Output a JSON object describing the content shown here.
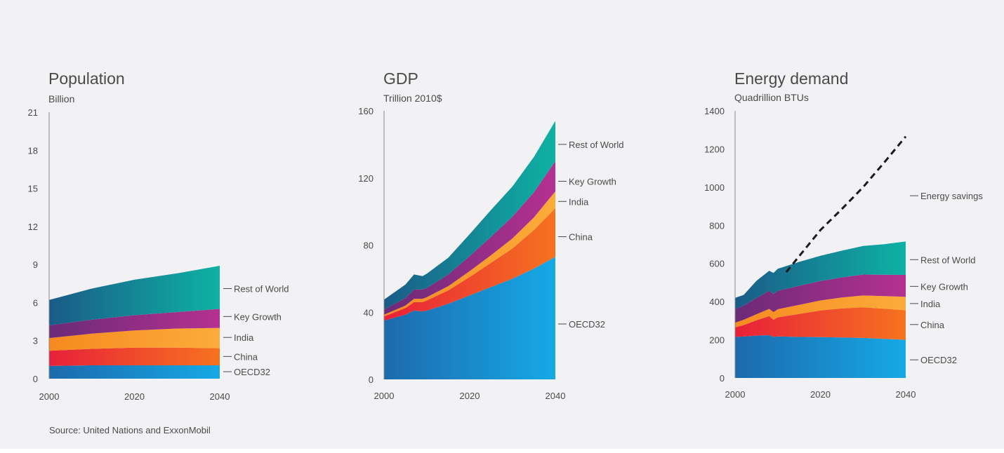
{
  "colors": {
    "background": "#f2f2f4",
    "OECD32": [
      "#1c6aac",
      "#16a9e6"
    ],
    "China": [
      "#e8203a",
      "#f6731e"
    ],
    "India": [
      "#f68a1f",
      "#fbac3a"
    ],
    "Key Growth": [
      "#6b2a77",
      "#b53191"
    ],
    "Rest of World": [
      "#1a5b88",
      "#0eb2a3"
    ]
  },
  "chart_data": [
    {
      "type": "area",
      "stacked": true,
      "title": "Population",
      "unit": "Billion",
      "x": [
        2000,
        2010,
        2020,
        2030,
        2040
      ],
      "xticks": [
        2000,
        2020,
        2040
      ],
      "ylim": [
        0,
        21
      ],
      "yticks": [
        0,
        3,
        6,
        9,
        12,
        15,
        18,
        21
      ],
      "series": [
        {
          "name": "OECD32",
          "values": [
            1.0,
            1.05,
            1.05,
            1.05,
            1.05
          ]
        },
        {
          "name": "China",
          "values": [
            1.2,
            1.3,
            1.4,
            1.4,
            1.35
          ]
        },
        {
          "name": "India",
          "values": [
            1.0,
            1.2,
            1.35,
            1.5,
            1.6
          ]
        },
        {
          "name": "Key Growth",
          "values": [
            1.0,
            1.1,
            1.2,
            1.3,
            1.5
          ]
        },
        {
          "name": "Rest of World",
          "values": [
            2.0,
            2.45,
            2.8,
            3.05,
            3.4
          ]
        }
      ],
      "labels": [
        "Rest of World",
        "Key Growth",
        "India",
        "China",
        "OECD32"
      ],
      "label_values": [
        7.1,
        4.9,
        3.25,
        1.75,
        0.55
      ],
      "grid": false,
      "legend": "right-inline"
    },
    {
      "type": "area",
      "stacked": true,
      "title": "GDP",
      "unit": "Trillion 2010$",
      "x": [
        2000,
        2005,
        2007,
        2009,
        2010,
        2015,
        2020,
        2025,
        2030,
        2035,
        2040
      ],
      "xticks": [
        2000,
        2020,
        2040
      ],
      "ylim": [
        0,
        160
      ],
      "yticks": [
        0,
        40,
        80,
        120,
        160
      ],
      "series": [
        {
          "name": "OECD32",
          "values": [
            35,
            38.5,
            41,
            40.5,
            41,
            45,
            50,
            55,
            60,
            66,
            73
          ]
        },
        {
          "name": "China",
          "values": [
            2.5,
            4,
            5,
            5.5,
            6,
            8,
            11,
            14.5,
            18,
            23,
            29
          ]
        },
        {
          "name": "India",
          "values": [
            1,
            1.5,
            2,
            2,
            2,
            2.5,
            3.5,
            4.5,
            6,
            7.5,
            10
          ]
        },
        {
          "name": "Key Growth",
          "values": [
            3,
            4.5,
            5.5,
            5.5,
            5.5,
            7,
            9,
            11,
            13,
            15,
            18
          ]
        },
        {
          "name": "Rest of World",
          "values": [
            6,
            8,
            9,
            8,
            8.5,
            10,
            13,
            16,
            18,
            21,
            24
          ]
        }
      ],
      "labels": [
        "Rest of World",
        "Key Growth",
        "India",
        "China",
        "OECD32"
      ],
      "label_values": [
        140,
        118,
        106,
        85,
        33
      ],
      "grid": false,
      "legend": "right-inline"
    },
    {
      "type": "area",
      "stacked": true,
      "title": "Energy demand",
      "unit": "Quadrillion BTUs",
      "x": [
        2000,
        2002,
        2005,
        2008,
        2009,
        2010,
        2015,
        2020,
        2025,
        2030,
        2035,
        2040
      ],
      "xticks": [
        2000,
        2020,
        2040
      ],
      "ylim": [
        0,
        1400
      ],
      "yticks": [
        0,
        200,
        400,
        600,
        800,
        1000,
        1200,
        1400
      ],
      "series": [
        {
          "name": "OECD32",
          "values": [
            215,
            217,
            222,
            224,
            215,
            218,
            215,
            214,
            212,
            210,
            205,
            200
          ]
        },
        {
          "name": "China",
          "values": [
            50,
            60,
            80,
            100,
            90,
            100,
            120,
            140,
            152,
            160,
            158,
            155
          ]
        },
        {
          "name": "India",
          "values": [
            25,
            28,
            32,
            38,
            40,
            42,
            48,
            52,
            58,
            62,
            66,
            70
          ]
        },
        {
          "name": "Key Growth",
          "values": [
            70,
            75,
            85,
            95,
            95,
            97,
            100,
            102,
            105,
            110,
            112,
            115
          ]
        },
        {
          "name": "Rest of World",
          "values": [
            60,
            55,
            90,
            105,
            110,
            115,
            125,
            132,
            140,
            150,
            160,
            175
          ]
        }
      ],
      "savings_line": {
        "name": "Energy savings",
        "x": [
          2012,
          2020,
          2025,
          2030,
          2035,
          2040
        ],
        "values": [
          555,
          775,
          885,
          1000,
          1130,
          1265
        ]
      },
      "labels": [
        "Energy savings",
        "Rest of World",
        "Key Growth",
        "India",
        "China",
        "OECD32"
      ],
      "label_values": [
        955,
        620,
        480,
        390,
        280,
        95
      ],
      "grid": false,
      "legend": "right-inline"
    }
  ],
  "source": "Source: United Nations and ExxonMobil"
}
